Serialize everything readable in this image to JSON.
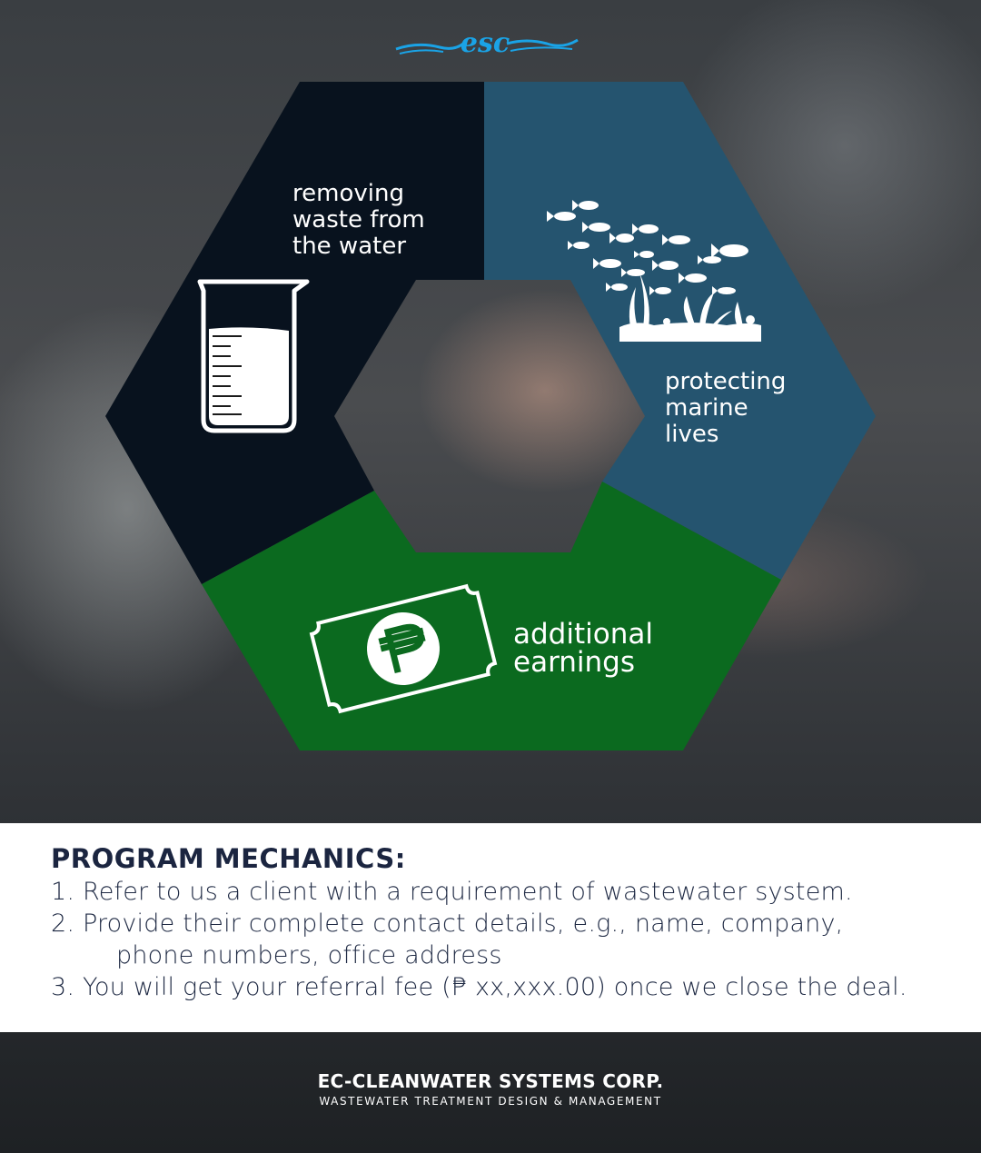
{
  "logo": {
    "text": "esc"
  },
  "segments": {
    "waste": {
      "lines": [
        "removing",
        "waste from",
        "the water"
      ],
      "color": "#08121e",
      "icon": "beaker-icon"
    },
    "marine": {
      "lines": [
        "protecting",
        "marine",
        "lives"
      ],
      "color": "#25546f",
      "icon": "fish-school-icon"
    },
    "earnings": {
      "lines": [
        "additional",
        "earnings"
      ],
      "color": "#0b6a1f",
      "icon": "peso-bill-icon"
    }
  },
  "mechanics": {
    "title": "PROGRAM MECHANICS:",
    "step1": "1. Refer to us a client with a requirement of wastewater system.",
    "step2a": "2. Provide their complete contact details, e.g., name, company,",
    "step2b": "phone numbers,  office address",
    "step3": "3. You will get your referral fee (₱ xx,xxx.00) once we close the deal."
  },
  "footer": {
    "company": "EC-CLEANWATER SYSTEMS CORP.",
    "tagline": "WASTEWATER TREATMENT DESIGN & MANAGEMENT"
  }
}
